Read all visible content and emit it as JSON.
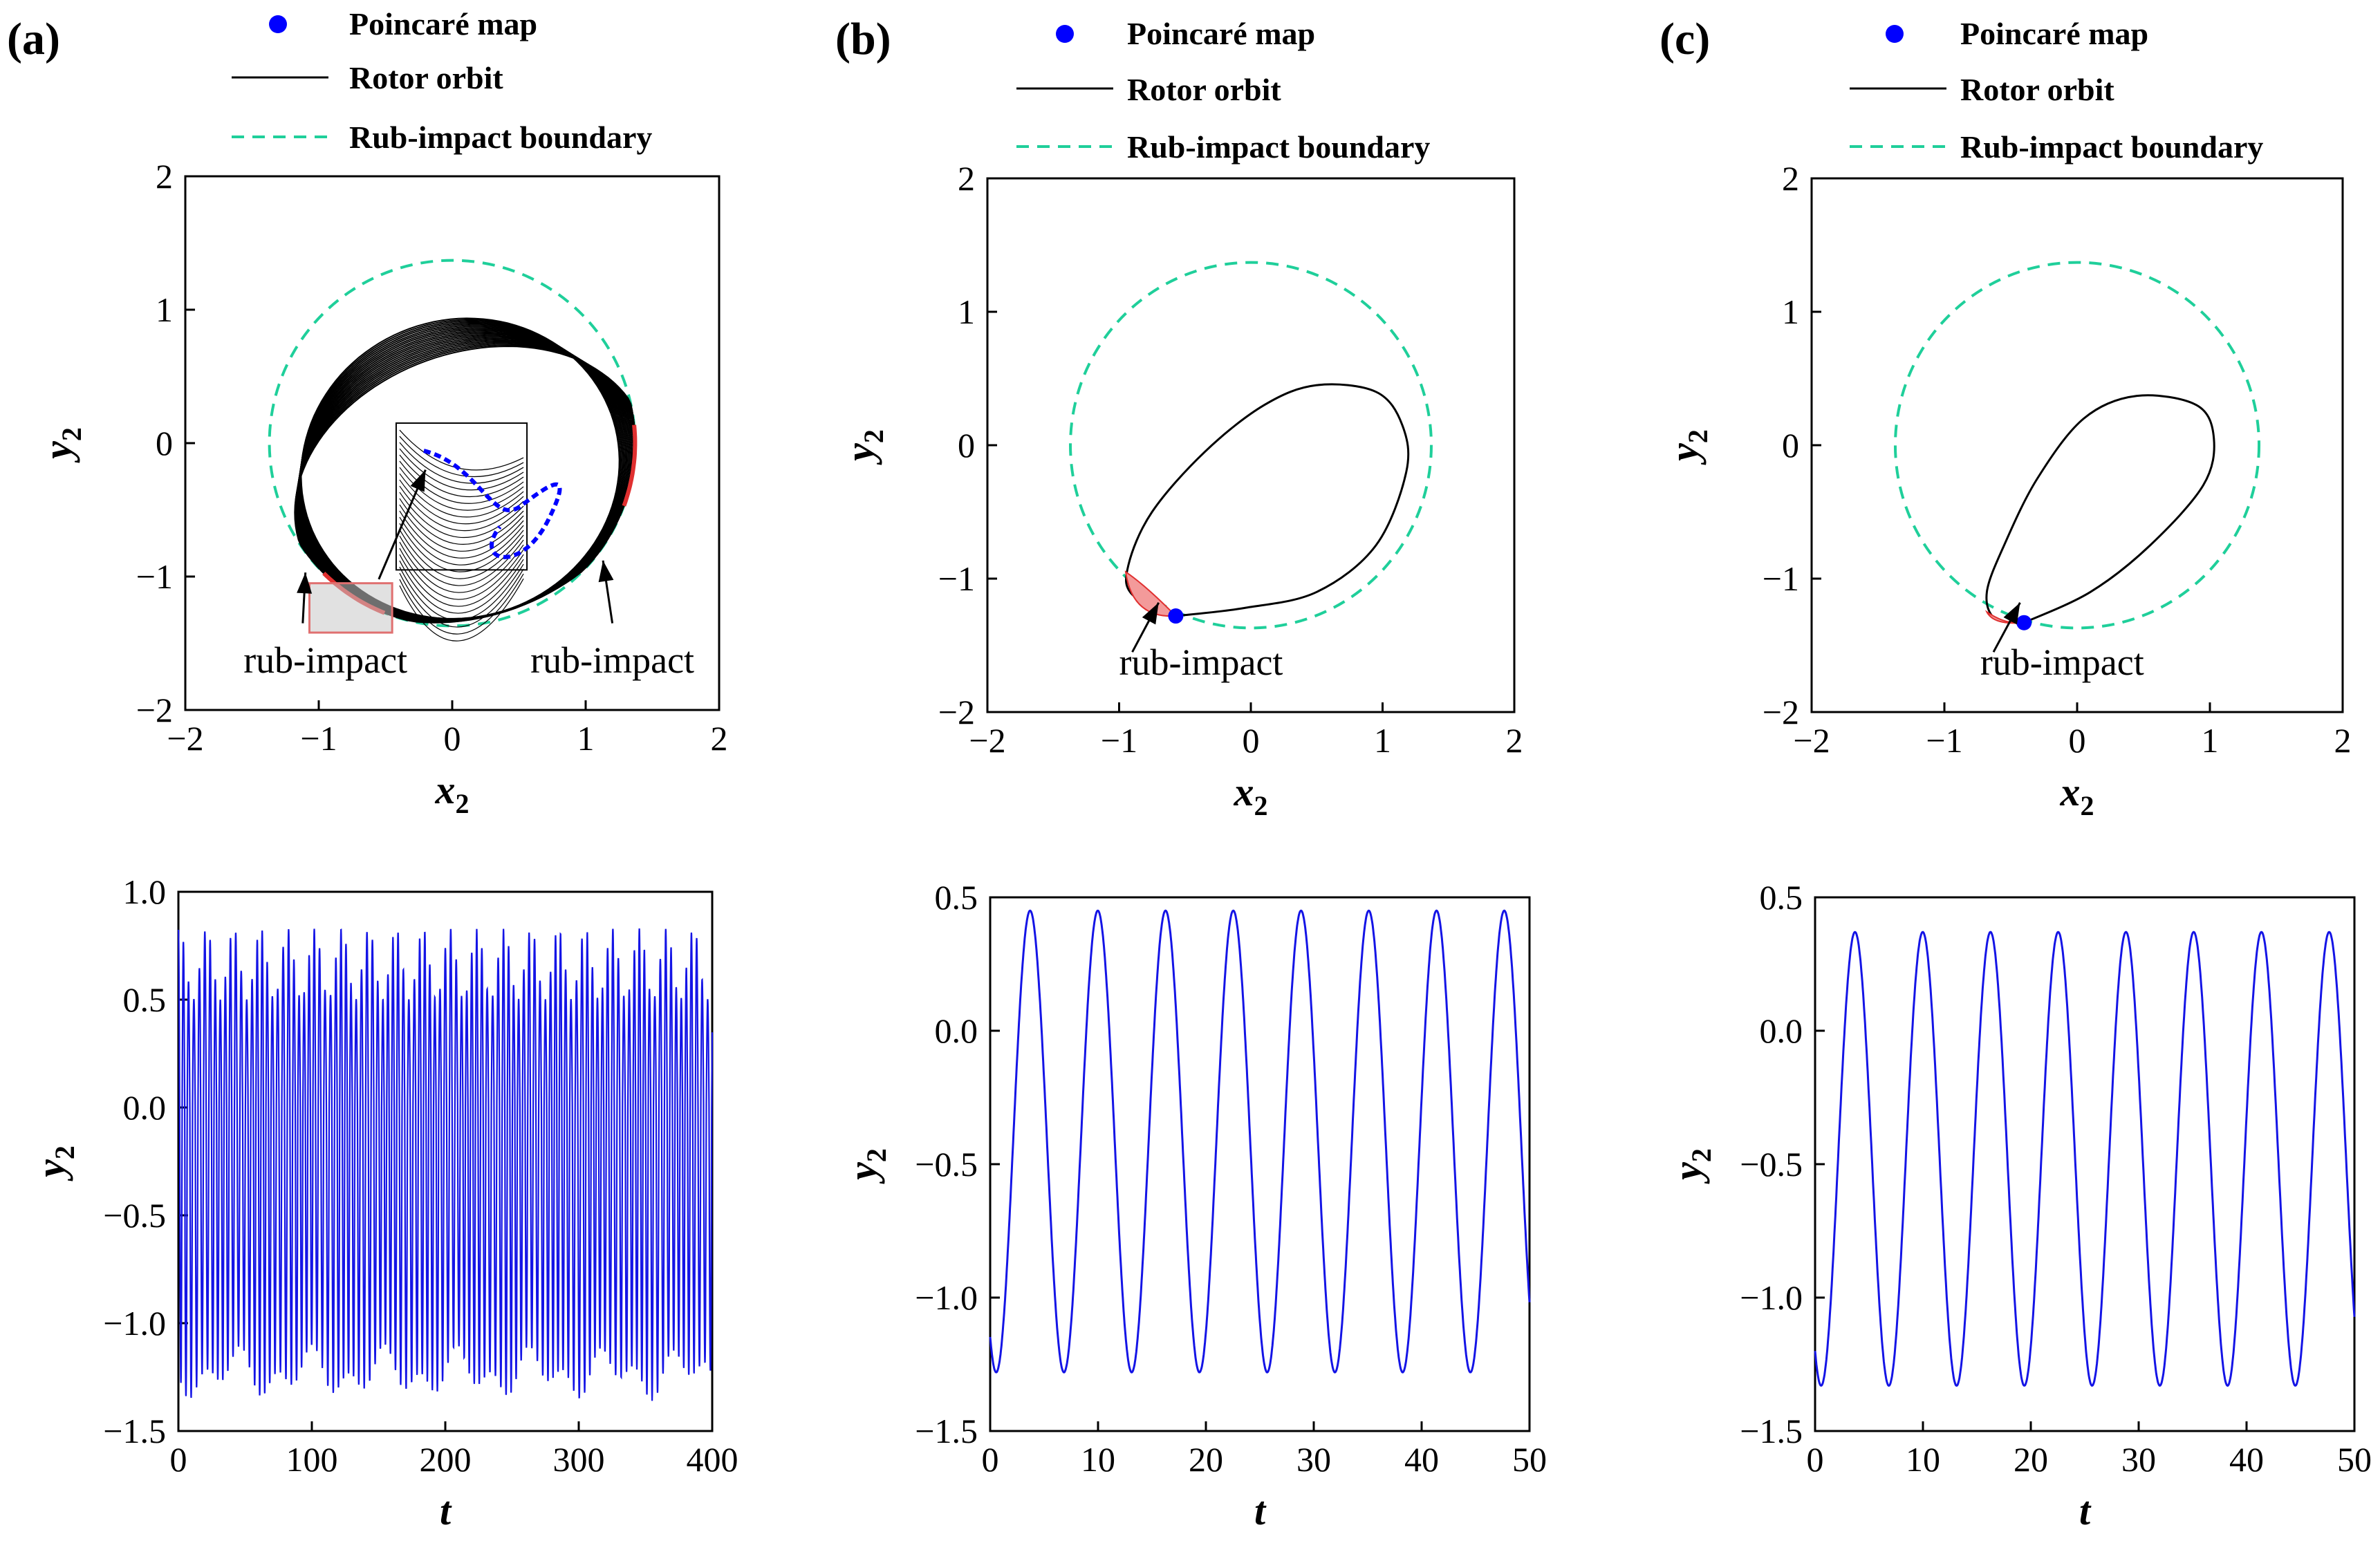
{
  "colors": {
    "orbit": "#000000",
    "poincare": "#0000ff",
    "boundary": "#1fcf9a",
    "rub": "#e03030",
    "series": "#1414e6"
  },
  "legend": {
    "poincare": "Poincaré map",
    "orbit": "Rotor orbit",
    "boundary": "Rub-impact boundary"
  },
  "annotation": "rub-impact",
  "chart_data": [
    {
      "type": "line",
      "panel": "(a)",
      "title": "",
      "xlabel": "x",
      "xlabel_sub": "2",
      "ylabel": "y",
      "ylabel_sub": "2",
      "xlim": [
        -2,
        2
      ],
      "ylim": [
        -2,
        2
      ],
      "xticks": [
        -2,
        -1,
        0,
        1,
        2
      ],
      "yticks": [
        -2,
        -1,
        0,
        1,
        2
      ],
      "xtick_labels": [
        "−2",
        "−1",
        "0",
        "1",
        "2"
      ],
      "ytick_labels": [
        "−2",
        "−1",
        "0",
        "1",
        "2"
      ],
      "boundary": {
        "cx": 0,
        "cy": 0,
        "r": 1.37
      },
      "orbit": {
        "cx": 0.1,
        "cy": -0.25,
        "a": 1.28,
        "b": 1.05,
        "tilt_deg": 20,
        "bands": 22,
        "spread": 0.13
      },
      "rub_arcs": [
        [
          -1.3,
          -1.05
        ],
        [
          -0.25,
          0.35
        ]
      ],
      "poincare_points": [
        [
          -0.8,
          -1.25
        ],
        [
          -0.75,
          -1.22
        ],
        [
          -0.7,
          -1.28
        ],
        [
          -0.65,
          -1.2
        ],
        [
          -0.6,
          -1.24
        ],
        [
          -0.55,
          -1.21
        ],
        [
          -0.68,
          -1.3
        ],
        [
          -0.72,
          -1.19
        ]
      ],
      "annotations": [
        "rub-impact",
        "rub-impact"
      ]
    },
    {
      "type": "line",
      "panel": "(b)",
      "title": "",
      "xlabel": "x",
      "xlabel_sub": "2",
      "ylabel": "y",
      "ylabel_sub": "2",
      "xlim": [
        -2,
        2
      ],
      "ylim": [
        -2,
        2
      ],
      "xticks": [
        -2,
        -1,
        0,
        1,
        2
      ],
      "yticks": [
        -2,
        -1,
        0,
        1,
        2
      ],
      "xtick_labels": [
        "−2",
        "−1",
        "0",
        "1",
        "2"
      ],
      "ytick_labels": [
        "−2",
        "−1",
        "0",
        "1",
        "2"
      ],
      "boundary": {
        "cx": 0,
        "cy": 0,
        "r": 1.37
      },
      "orbit": {
        "points": [
          [
            -0.57,
            -1.28
          ],
          [
            -0.05,
            -1.22
          ],
          [
            0.5,
            -1.1
          ],
          [
            0.95,
            -0.75
          ],
          [
            1.18,
            -0.2
          ],
          [
            1.15,
            0.15
          ],
          [
            0.95,
            0.4
          ],
          [
            0.5,
            0.45
          ],
          [
            0.1,
            0.3
          ],
          [
            -0.35,
            -0.05
          ],
          [
            -0.75,
            -0.5
          ],
          [
            -0.93,
            -0.9
          ],
          [
            -0.9,
            -1.12
          ],
          [
            -0.57,
            -1.28
          ]
        ]
      },
      "rub_region": [
        [
          -0.95,
          -0.95
        ],
        [
          -0.57,
          -1.28
        ]
      ],
      "poincare_points": [
        [
          -0.57,
          -1.28
        ]
      ],
      "annotations": [
        "rub-impact"
      ]
    },
    {
      "type": "line",
      "panel": "(c)",
      "title": "",
      "xlabel": "x",
      "xlabel_sub": "2",
      "ylabel": "y",
      "ylabel_sub": "2",
      "xlim": [
        -2,
        2
      ],
      "ylim": [
        -2,
        2
      ],
      "xticks": [
        -2,
        -1,
        0,
        1,
        2
      ],
      "yticks": [
        -2,
        -1,
        0,
        1,
        2
      ],
      "xtick_labels": [
        "−2",
        "−1",
        "0",
        "1",
        "2"
      ],
      "ytick_labels": [
        "−2",
        "−1",
        "0",
        "1",
        "2"
      ],
      "boundary": {
        "cx": 0,
        "cy": 0,
        "r": 1.37
      },
      "orbit": {
        "points": [
          [
            -0.4,
            -1.33
          ],
          [
            0.1,
            -1.1
          ],
          [
            0.55,
            -0.75
          ],
          [
            0.95,
            -0.3
          ],
          [
            1.03,
            0.05
          ],
          [
            0.9,
            0.3
          ],
          [
            0.45,
            0.37
          ],
          [
            0.05,
            0.2
          ],
          [
            -0.3,
            -0.25
          ],
          [
            -0.55,
            -0.75
          ],
          [
            -0.68,
            -1.1
          ],
          [
            -0.62,
            -1.3
          ],
          [
            -0.4,
            -1.33
          ]
        ]
      },
      "rub_region": [
        [
          -0.68,
          -1.25
        ],
        [
          -0.4,
          -1.33
        ]
      ],
      "poincare_points": [
        [
          -0.4,
          -1.33
        ]
      ],
      "annotations": [
        "rub-impact"
      ]
    },
    {
      "type": "line",
      "panel": "(a) time series",
      "title": "",
      "xlabel": "t",
      "ylabel": "y",
      "ylabel_sub": "2",
      "xlim": [
        0,
        400
      ],
      "ylim": [
        -1.5,
        1.0
      ],
      "xticks": [
        0,
        100,
        200,
        300,
        400
      ],
      "yticks": [
        -1.5,
        -1.0,
        -0.5,
        0.0,
        0.5,
        1.0
      ],
      "xtick_labels": [
        "0",
        "100",
        "200",
        "300",
        "400"
      ],
      "ytick_labels": [
        "−1.5",
        "−1.0",
        "−0.5",
        "0.0",
        "0.5",
        "1.0"
      ],
      "series": [
        {
          "name": "y2",
          "mode": "quasi",
          "period": 6.28,
          "peak_range": [
            0.5,
            0.83
          ],
          "trough_range": [
            -1.1,
            -1.37
          ]
        }
      ]
    },
    {
      "type": "line",
      "panel": "(b) time series",
      "title": "",
      "xlabel": "t",
      "ylabel": "y",
      "ylabel_sub": "2",
      "xlim": [
        0,
        50
      ],
      "ylim": [
        -1.5,
        0.5
      ],
      "xticks": [
        0,
        10,
        20,
        30,
        40,
        50
      ],
      "yticks": [
        -1.5,
        -1.0,
        -0.5,
        0.0,
        0.5
      ],
      "xtick_labels": [
        "0",
        "10",
        "20",
        "30",
        "40",
        "50"
      ],
      "ytick_labels": [
        "−1.5",
        "−1.0",
        "−0.5",
        "0.0",
        "0.5"
      ],
      "series": [
        {
          "name": "y2",
          "mode": "periodic",
          "period": 6.28,
          "phase_t": 3.7,
          "max": 0.45,
          "min": -1.28
        }
      ]
    },
    {
      "type": "line",
      "panel": "(c) time series",
      "title": "",
      "xlabel": "t",
      "ylabel": "y",
      "ylabel_sub": "2",
      "xlim": [
        0,
        50
      ],
      "ylim": [
        -1.5,
        0.5
      ],
      "xticks": [
        0,
        10,
        20,
        30,
        40,
        50
      ],
      "yticks": [
        -1.5,
        -1.0,
        -0.5,
        0.0,
        0.5
      ],
      "xtick_labels": [
        "0",
        "10",
        "20",
        "30",
        "40",
        "50"
      ],
      "ytick_labels": [
        "−1.5",
        "−1.0",
        "−0.5",
        "0.0",
        "0.5"
      ],
      "series": [
        {
          "name": "y2",
          "mode": "periodic",
          "period": 6.28,
          "phase_t": 3.7,
          "max": 0.37,
          "min": -1.33
        }
      ]
    }
  ]
}
